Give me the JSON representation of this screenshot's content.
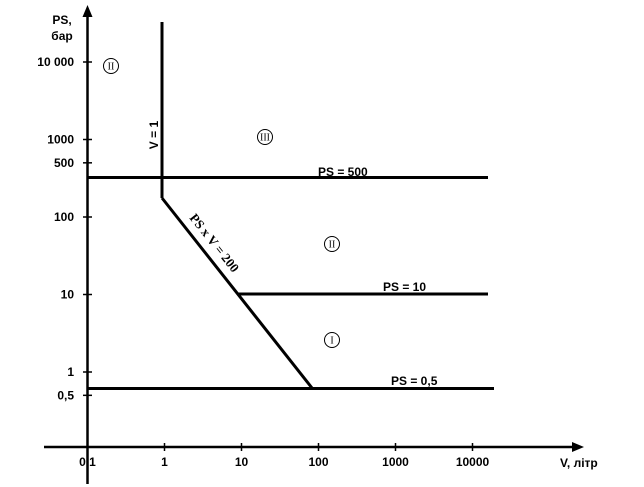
{
  "chart_data": {
    "type": "line",
    "xlabel": "V, літр",
    "ylabel_line1": "PS,",
    "ylabel_line2": "бар",
    "x_scale": "log",
    "y_scale": "log",
    "xlim": [
      0.1,
      20000
    ],
    "ylim": [
      0.1,
      20000
    ],
    "x_ticks": [
      {
        "value": 0.1,
        "label": "0,1"
      },
      {
        "value": 1,
        "label": "1"
      },
      {
        "value": 10,
        "label": "10"
      },
      {
        "value": 100,
        "label": "100"
      },
      {
        "value": 1000,
        "label": "1000"
      },
      {
        "value": 10000,
        "label": "10000"
      }
    ],
    "y_ticks": [
      {
        "value": 0.5,
        "label": "0,5"
      },
      {
        "value": 1,
        "label": "1"
      },
      {
        "value": 10,
        "label": "10"
      },
      {
        "value": 100,
        "label": "100"
      },
      {
        "value": 500,
        "label": "500"
      },
      {
        "value": 1000,
        "label": "1000"
      },
      {
        "value": 10000,
        "label": "10 000"
      }
    ],
    "grid": false,
    "boundaries": [
      {
        "id": "v1",
        "label": "V = 1",
        "points": [
          [
            1,
            200
          ],
          [
            1,
            20000
          ]
        ]
      },
      {
        "id": "ps500",
        "label": "PS = 500",
        "points": [
          [
            1,
            500
          ],
          [
            20000,
            500
          ]
        ]
      },
      {
        "id": "psv200",
        "label": "PS x V = 200",
        "points": [
          [
            1,
            200
          ],
          [
            400,
            0.5
          ]
        ]
      },
      {
        "id": "ps10",
        "label": "PS = 10",
        "points": [
          [
            20,
            10
          ],
          [
            20000,
            10
          ]
        ]
      },
      {
        "id": "ps05",
        "label": "PS = 0,5",
        "points": [
          [
            0.1,
            0.5
          ],
          [
            20000,
            0.5
          ]
        ]
      }
    ],
    "categories": [
      {
        "label": "II",
        "x": 0.3,
        "y": 8000
      },
      {
        "label": "III",
        "x": 40,
        "y": 1000
      },
      {
        "label": "II",
        "x": 200,
        "y": 40
      },
      {
        "label": "I",
        "x": 200,
        "y": 2
      }
    ]
  }
}
